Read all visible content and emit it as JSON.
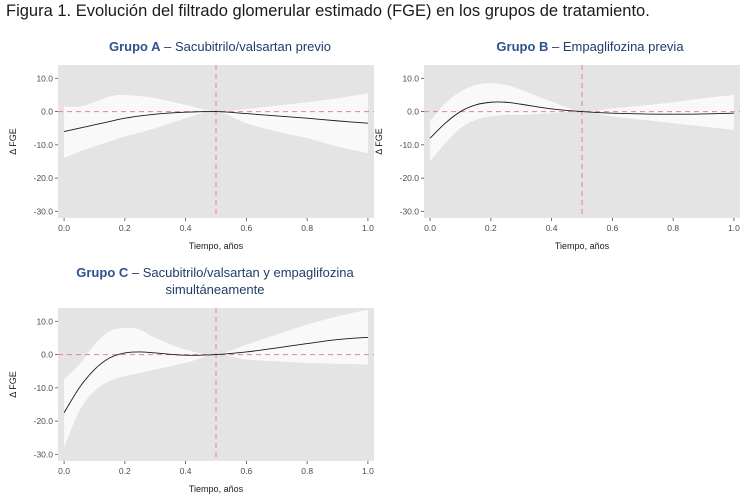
{
  "figure_title": "Figura 1. Evolución del filtrado glomerular estimado (FGE) en los grupos de tratamiento.",
  "colors": {
    "panel_bg": "#e4e4e4",
    "band": "#f9f9f9",
    "line": "#1a1a1a",
    "reference": "#f08080",
    "title_group": "#2f528f",
    "title_text": "#1f3d6b"
  },
  "chart_data": [
    {
      "type": "line",
      "title_bold": "Grupo A",
      "title_rest": " – Sacubitrilo/valsartan previo",
      "xlabel": "Tiempo, años",
      "ylabel": "Δ FGE",
      "xlim": [
        -0.02,
        1.02
      ],
      "ylim": [
        -32,
        14
      ],
      "xticks": [
        0.0,
        0.2,
        0.4,
        0.6,
        0.8,
        1.0
      ],
      "xtick_labels": [
        "0.0",
        "0.2",
        "0.4",
        "0.6",
        "0.8",
        "1.0"
      ],
      "yticks": [
        10,
        0,
        -10,
        -20,
        -30
      ],
      "ytick_labels": [
        "10.0",
        "0.0",
        "-10.0",
        "-20.0",
        "-30.0"
      ],
      "reference_x": 0.5,
      "reference_y": 0,
      "grid": false,
      "x": [
        0.0,
        0.05,
        0.1,
        0.15,
        0.2,
        0.3,
        0.4,
        0.5,
        0.6,
        0.7,
        0.8,
        0.9,
        1.0
      ],
      "mean": [
        -6.0,
        -5.0,
        -4.0,
        -3.0,
        -2.0,
        -0.8,
        -0.2,
        0.0,
        -0.6,
        -1.3,
        -2.0,
        -2.8,
        -3.5
      ],
      "upper": [
        1.5,
        1.5,
        2.8,
        4.5,
        5.0,
        4.0,
        2.0,
        0.0,
        0.8,
        1.8,
        2.8,
        4.0,
        5.5
      ],
      "lower": [
        -14.0,
        -12.0,
        -10.5,
        -9.0,
        -7.5,
        -5.0,
        -2.0,
        0.0,
        -3.5,
        -6.0,
        -8.0,
        -10.5,
        -12.5
      ]
    },
    {
      "type": "line",
      "title_bold": "Grupo B",
      "title_rest": " – Empaglifozina previa",
      "xlabel": "Tiempo, años",
      "ylabel": "Δ FGE",
      "xlim": [
        -0.02,
        1.02
      ],
      "ylim": [
        -32,
        14
      ],
      "xticks": [
        0.0,
        0.2,
        0.4,
        0.6,
        0.8,
        1.0
      ],
      "xtick_labels": [
        "0.0",
        "0.2",
        "0.4",
        "0.6",
        "0.8",
        "1.0"
      ],
      "yticks": [
        10,
        0,
        -10,
        -20,
        -30
      ],
      "ytick_labels": [
        "10.0",
        "0.0",
        "-10.0",
        "-20.0",
        "-30.0"
      ],
      "reference_x": 0.5,
      "reference_y": 0,
      "grid": false,
      "x": [
        0.0,
        0.05,
        0.1,
        0.15,
        0.2,
        0.25,
        0.3,
        0.4,
        0.5,
        0.6,
        0.7,
        0.8,
        0.9,
        1.0
      ],
      "mean": [
        -8.0,
        -3.5,
        0.0,
        2.0,
        2.8,
        2.8,
        2.2,
        0.8,
        0.0,
        -0.5,
        -0.7,
        -0.8,
        -0.7,
        -0.5
      ],
      "upper": [
        -3.0,
        2.5,
        6.0,
        8.0,
        8.5,
        8.0,
        6.5,
        3.0,
        0.0,
        1.0,
        1.8,
        2.8,
        4.0,
        5.0
      ],
      "lower": [
        -15.0,
        -9.5,
        -5.0,
        -2.5,
        -1.5,
        -1.0,
        -1.0,
        -0.5,
        0.0,
        -1.5,
        -2.5,
        -3.5,
        -4.5,
        -5.5
      ]
    },
    {
      "type": "line",
      "title_bold": "Grupo C",
      "title_rest": " – Sacubitrilo/valsartan y empaglifozina simultáneamente",
      "xlabel": "Tiempo, años",
      "ylabel": "Δ FGE",
      "xlim": [
        -0.02,
        1.02
      ],
      "ylim": [
        -32,
        14
      ],
      "xticks": [
        0.0,
        0.2,
        0.4,
        0.6,
        0.8,
        1.0
      ],
      "xtick_labels": [
        "0.0",
        "0.2",
        "0.4",
        "0.6",
        "0.8",
        "1.0"
      ],
      "yticks": [
        10,
        0,
        -10,
        -20,
        -30
      ],
      "ytick_labels": [
        "10.0",
        "0.0",
        "-10.0",
        "-20.0",
        "-30.0"
      ],
      "reference_x": 0.5,
      "reference_y": 0,
      "grid": false,
      "x": [
        0.0,
        0.05,
        0.1,
        0.15,
        0.2,
        0.25,
        0.3,
        0.4,
        0.5,
        0.6,
        0.7,
        0.8,
        0.9,
        1.0
      ],
      "mean": [
        -17.5,
        -10.0,
        -4.5,
        -1.0,
        0.5,
        0.8,
        0.5,
        -0.2,
        0.0,
        0.8,
        2.0,
        3.3,
        4.5,
        5.2
      ],
      "upper": [
        -7.5,
        -3.0,
        3.0,
        7.0,
        8.0,
        7.5,
        5.0,
        1.5,
        0.0,
        3.0,
        6.0,
        9.0,
        11.5,
        13.5
      ],
      "lower": [
        -28.0,
        -17.0,
        -11.0,
        -8.0,
        -6.5,
        -5.5,
        -4.5,
        -2.5,
        0.0,
        -1.5,
        -2.0,
        -2.5,
        -2.8,
        -3.0
      ]
    }
  ]
}
